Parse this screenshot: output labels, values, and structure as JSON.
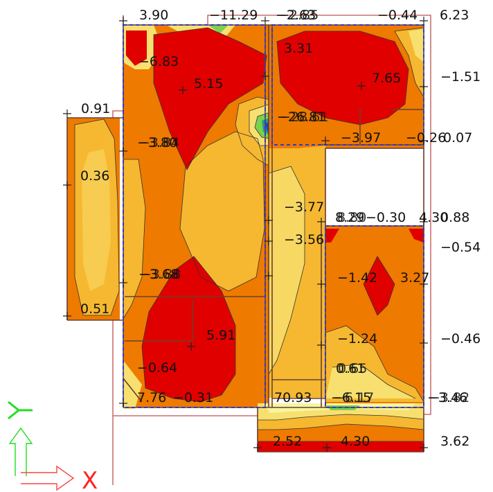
{
  "labels": {
    "top_3_90": "3.90",
    "top_n11_29": "−11.29",
    "top_n2_63": "−2.63",
    "top_n2_85": "−2.85",
    "top_n0_44": "−0.44",
    "top_6_23": "6.23",
    "n6_83": "−6.83",
    "l_3_31": "3.31",
    "l_5_15": "5.15",
    "l_7_65": "7.65",
    "r_n1_51": "−1.51",
    "l_0_91": "0.91",
    "n26_81": "−26.81",
    "n28_61": "−28.61",
    "n3_97": "−3.97",
    "n0_26": "−0.26",
    "r_0_07": "0.07",
    "n3_80": "−3.80",
    "n3_84": "−3.84",
    "l_0_36": "0.36",
    "n3_77": "−3.77",
    "l_8_29": "8.29",
    "l_8_80": "8.80",
    "n0_30": "−0.30",
    "l_4_30b": "4.30",
    "l_0_88": "0.88",
    "n3_56": "−3.56",
    "r_n0_54": "−0.54",
    "n3_68": "−3.68",
    "n3_88": "−3.88",
    "n1_42": "−1.42",
    "l_3_27": "3.27",
    "l_0_51": "0.51",
    "l_5_91": "5.91",
    "n1_24": "−1.24",
    "r_n0_46": "−0.46",
    "l_0_61": "0.61",
    "l_0_65": "0.65",
    "n0_64": "−0.64",
    "l_7_76": "7.76",
    "n0_31": "−0.31",
    "l_70_93": "70.93",
    "n6_15": "−6.15",
    "n6_17": "−6.17",
    "n3_46": "−3.46",
    "n3_82": "−3.82",
    "l_2_52": "2.52",
    "l_4_30": "4.30",
    "r_3_62": "3.62"
  },
  "axes": {
    "y_label": "Y",
    "x_label": "X",
    "y_color": "#22dd22",
    "x_color": "#ff2222"
  },
  "colors": {
    "red": "#e00000",
    "orange": "#ee7a00",
    "light_orange": "#f6b830",
    "yellow": "#f8e070",
    "pale_yellow": "#f6f5a0",
    "green": "#7ad050",
    "teal": "#2a9a80",
    "blue": "#2a3ad0",
    "boundary": "#c05050"
  }
}
